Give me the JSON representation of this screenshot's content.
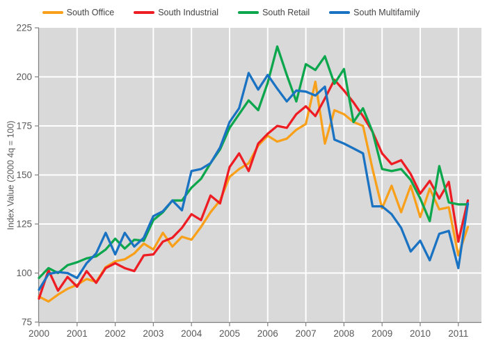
{
  "chart_data": {
    "type": "line",
    "title": "",
    "ylabel": "Index Value (2000 4q = 100)",
    "xlabel": "",
    "x_tick_labels": [
      "2000",
      "2001",
      "2002",
      "2003",
      "2004",
      "2005",
      "2006",
      "2007",
      "2008",
      "2009",
      "2010",
      "2011"
    ],
    "y_ticks": [
      75,
      100,
      125,
      150,
      175,
      200,
      225
    ],
    "ylim": [
      75,
      225
    ],
    "x_start": "2000Q1",
    "x_end": "2011Q2",
    "points_per_year": 4,
    "grid": "on",
    "legend_position": "top",
    "plot_bg": "#D9D9D9",
    "grid_color": "#FFFFFF",
    "axis_color": "#808080",
    "tick_label_color": "#595959",
    "series": [
      {
        "name": "South Office",
        "color": "#F9A01B",
        "values": [
          88,
          85.5,
          89,
          92,
          94,
          97,
          95.5,
          103,
          106,
          107,
          110,
          115,
          112,
          120.5,
          113.5,
          118.5,
          117,
          123.5,
          131,
          137,
          149,
          153,
          156,
          165,
          170,
          167,
          168.5,
          173,
          176,
          197.5,
          166,
          183,
          181,
          177,
          175,
          153,
          133,
          144.5,
          131,
          144.5,
          128.5,
          143,
          132.5,
          133.5,
          109,
          123.5
        ]
      },
      {
        "name": "South Industrial",
        "color": "#EE1C23",
        "values": [
          87,
          101.5,
          91,
          98,
          93,
          101,
          95,
          102.5,
          105,
          102.5,
          101,
          109,
          109.5,
          116,
          118,
          123,
          130,
          127,
          139.5,
          135.5,
          154,
          161,
          152,
          166,
          171,
          175,
          174,
          181,
          185,
          180,
          189,
          198.5,
          193,
          187,
          180,
          172,
          161,
          155.5,
          157.5,
          150.5,
          140.5,
          147,
          138,
          146.5,
          116,
          137
        ]
      },
      {
        "name": "South Retail",
        "color": "#0CA64D",
        "values": [
          97.5,
          102.5,
          100,
          104,
          105.5,
          107.5,
          108.5,
          112,
          117.5,
          112.5,
          117,
          116.5,
          127,
          131,
          137,
          137,
          143.5,
          148,
          156,
          163,
          174,
          181,
          188,
          183,
          197,
          215.5,
          201,
          187.5,
          206.5,
          203.5,
          210.5,
          196.5,
          204,
          177,
          184,
          172,
          153,
          152,
          153,
          147.5,
          138,
          126.5,
          154.5,
          136,
          135,
          135
        ]
      },
      {
        "name": "South Multifamily",
        "color": "#1A72C2",
        "values": [
          91.5,
          99.5,
          100.5,
          100,
          97.5,
          105,
          110,
          120.5,
          109.5,
          120.5,
          113.5,
          118,
          129,
          131.5,
          137,
          132,
          152,
          153,
          156,
          164,
          177,
          184,
          202,
          193.5,
          201,
          194,
          187.5,
          193,
          192.5,
          190.5,
          195,
          168,
          166,
          163.5,
          161,
          134,
          134,
          130,
          123,
          111,
          116.5,
          106.5,
          120,
          121.5,
          102.5,
          135.5
        ]
      }
    ]
  }
}
